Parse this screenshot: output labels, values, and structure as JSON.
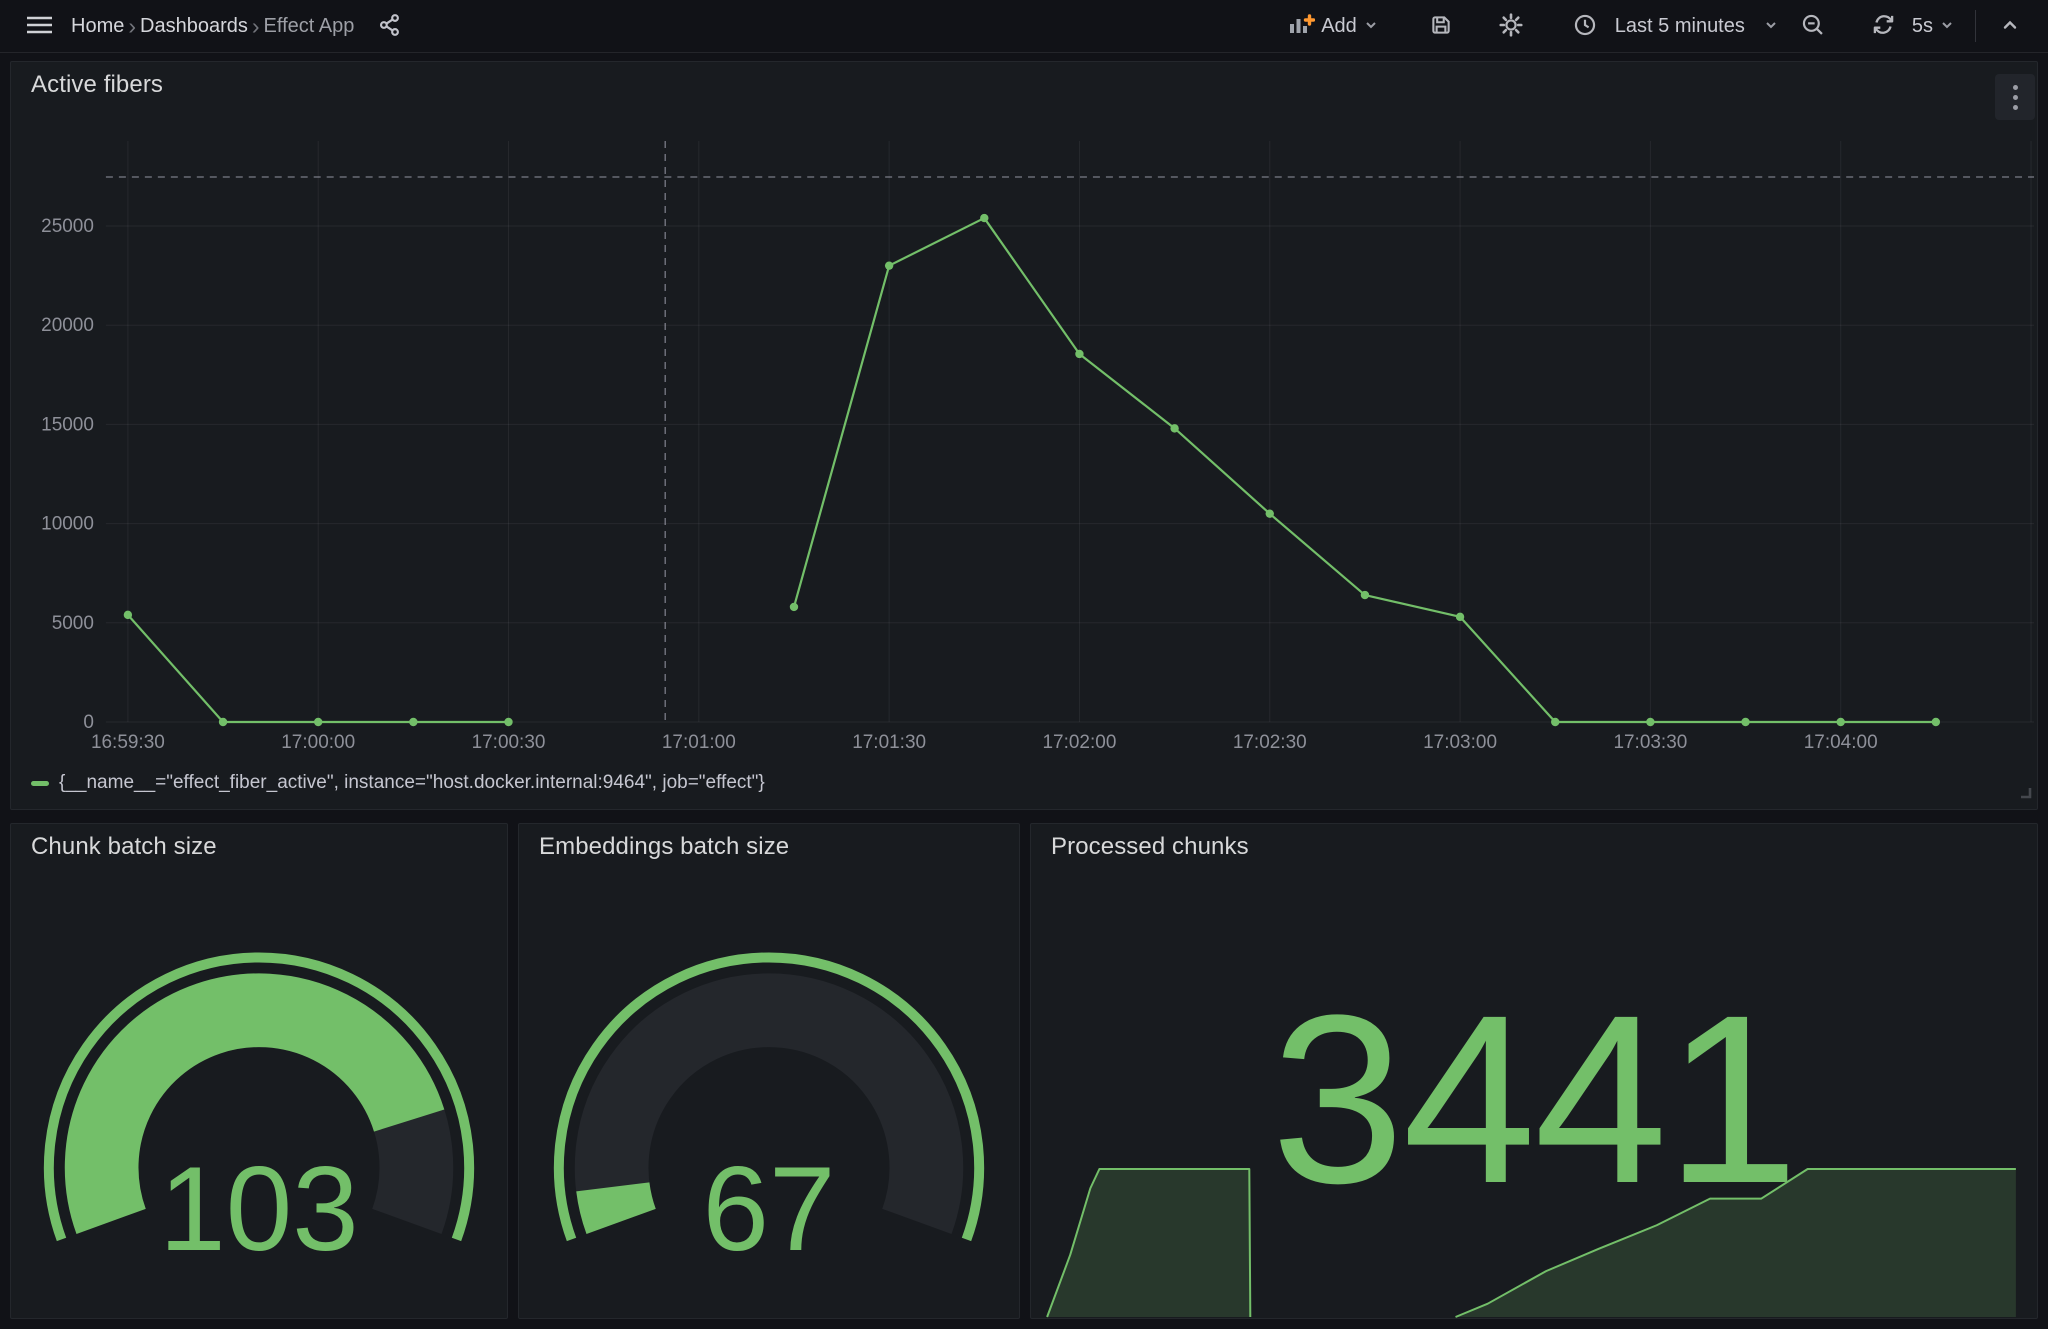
{
  "colors": {
    "green": "#73BF69",
    "orange_plus": "#FF9830",
    "page_bg": "#111217",
    "panel_bg": "#181b1f",
    "gauge_track": "#24272c",
    "axis_text": "#8e9099",
    "grid_line": "rgba(204,204,220,0.08)",
    "crosshair": "rgba(204,204,220,0.55)"
  },
  "navbar": {
    "breadcrumb": {
      "home": "Home",
      "section": "Dashboards",
      "current": "Effect App"
    },
    "add_label": "Add",
    "time_range_label": "Last 5 minutes",
    "refresh_interval_label": "5s"
  },
  "panels": {
    "active_fibers": {
      "title": "Active fibers",
      "legend": "{__name__=\"effect_fiber_active\", instance=\"host.docker.internal:9464\", job=\"effect\"}"
    },
    "chunk_batch_size": {
      "title": "Chunk batch size",
      "value": "103"
    },
    "embeddings_batch_size": {
      "title": "Embeddings batch size",
      "value": "67"
    },
    "processed_chunks": {
      "title": "Processed chunks",
      "value": "3441"
    }
  },
  "chart_data": [
    {
      "id": "active_fibers",
      "type": "line",
      "title": "Active fibers",
      "start_time": "16:59:30",
      "series": [
        {
          "name": "{__name__=\"effect_fiber_active\", instance=\"host.docker.internal:9464\", job=\"effect\"}",
          "color": "#73BF69",
          "points": [
            [
              0,
              5400
            ],
            [
              15,
              0
            ],
            [
              30,
              0
            ],
            [
              45,
              0
            ],
            [
              60,
              0
            ],
            [
              75,
              null
            ],
            [
              90,
              null
            ],
            [
              105,
              5800
            ],
            [
              120,
              23000
            ],
            [
              135,
              25400
            ],
            [
              150,
              18550
            ],
            [
              165,
              14800
            ],
            [
              180,
              10500
            ],
            [
              195,
              6400
            ],
            [
              210,
              5300
            ],
            [
              225,
              0
            ],
            [
              240,
              0
            ],
            [
              255,
              0
            ],
            [
              270,
              0
            ],
            [
              285,
              0
            ]
          ]
        }
      ],
      "x_ticks": [
        {
          "s": 0,
          "label": "16:59:30"
        },
        {
          "s": 30,
          "label": "17:00:00"
        },
        {
          "s": 60,
          "label": "17:00:30"
        },
        {
          "s": 90,
          "label": "17:01:00"
        },
        {
          "s": 120,
          "label": "17:01:30"
        },
        {
          "s": 150,
          "label": "17:02:00"
        },
        {
          "s": 180,
          "label": "17:02:30"
        },
        {
          "s": 210,
          "label": "17:03:00"
        },
        {
          "s": 240,
          "label": "17:03:30"
        },
        {
          "s": 270,
          "label": "17:04:00"
        }
      ],
      "extra_gridline_seconds": [
        300
      ],
      "y_ticks": [
        0,
        5000,
        10000,
        15000,
        20000,
        25000
      ],
      "ylim": [
        0,
        29300
      ],
      "grid": true,
      "legend_position": "bottom",
      "crosshair": {
        "x_seconds": 84.7,
        "y_value": 27470
      }
    },
    {
      "id": "chunk_batch_size",
      "type": "gauge",
      "title": "Chunk batch size",
      "value": 103,
      "min": 0,
      "fill_fraction": 0.83,
      "color": "#73BF69"
    },
    {
      "id": "embeddings_batch_size",
      "type": "gauge",
      "title": "Embeddings batch size",
      "value": 67,
      "min": 0,
      "fill_fraction": 0.059,
      "color": "#73BF69"
    },
    {
      "id": "processed_chunks",
      "type": "stat",
      "title": "Processed chunks",
      "value": 3441,
      "sparkline": {
        "color": "#73BF69",
        "fill_opacity": 0.18,
        "segments": [
          [
            [
              0.016,
              0
            ],
            [
              0.039,
              0.42
            ],
            [
              0.059,
              0.87
            ],
            [
              0.068,
              1
            ],
            [
              0.217,
              1
            ],
            [
              0.218,
              0
            ]
          ],
          [
            [
              0.422,
              0
            ],
            [
              0.454,
              0.09
            ],
            [
              0.512,
              0.31
            ],
            [
              0.564,
              0.46
            ],
            [
              0.622,
              0.62
            ],
            [
              0.675,
              0.8
            ],
            [
              0.726,
              0.8
            ],
            [
              0.772,
              1
            ],
            [
              0.979,
              1
            ]
          ]
        ]
      }
    }
  ]
}
